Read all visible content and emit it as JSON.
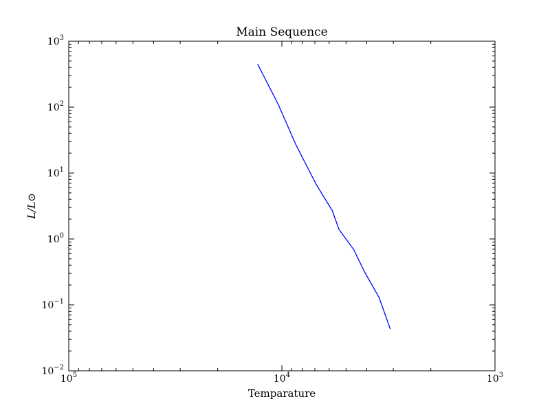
{
  "chart_data": {
    "type": "line",
    "title": "Main Sequence",
    "xlabel": "Temparature",
    "ylabel": "L/L⊙",
    "x_scale": "log",
    "y_scale": "log",
    "x_reversed": true,
    "xlim": [
      100000,
      1000
    ],
    "ylim": [
      0.01,
      1000
    ],
    "grid": false,
    "x_tick_labels": [
      {
        "base": "10",
        "exp": "5",
        "value": 100000
      },
      {
        "base": "10",
        "exp": "4",
        "value": 10000
      },
      {
        "base": "10",
        "exp": "3",
        "value": 1000
      }
    ],
    "y_tick_labels": [
      {
        "base": "10",
        "exp": "3",
        "value": 1000
      },
      {
        "base": "10",
        "exp": "2",
        "value": 100
      },
      {
        "base": "10",
        "exp": "1",
        "value": 10
      },
      {
        "base": "10",
        "exp": "0",
        "value": 1
      },
      {
        "base": "10",
        "exp": "−1",
        "value": 0.1
      },
      {
        "base": "10",
        "exp": "−2",
        "value": 0.01
      }
    ],
    "series": [
      {
        "color": "#0000ff",
        "x": [
          13000,
          10400,
          8600,
          6900,
          5800,
          5400,
          4600,
          4100,
          3500
        ],
        "y": [
          450,
          110,
          27,
          6.7,
          2.7,
          1.4,
          0.69,
          0.32,
          0.13
        ]
      }
    ],
    "series_end": {
      "x": 3100,
      "y": 0.043
    }
  }
}
